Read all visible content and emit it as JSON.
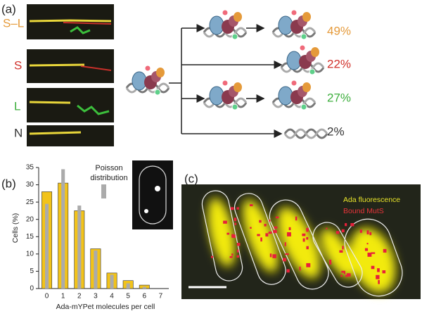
{
  "panel_a": {
    "label": "(a)",
    "rows": [
      "S–L",
      "S",
      "L",
      "N"
    ],
    "percentages": [
      "49%",
      "22%",
      "27%",
      "2%"
    ]
  },
  "chart_data": {
    "type": "bar",
    "panel_label": "(b)",
    "categories": [
      "0",
      "1",
      "2",
      "3",
      "4",
      "5",
      "6",
      "7"
    ],
    "series": [
      {
        "color": "#f2c31a",
        "values": [
          28,
          30.5,
          22.5,
          11.5,
          4.5,
          2.3,
          1,
          0
        ]
      },
      {
        "name": "Poisson distribution",
        "color": "#ababab",
        "values": [
          24.5,
          34.5,
          24,
          11,
          4,
          1.5,
          0.5,
          0
        ]
      }
    ],
    "ylim": [
      0,
      35
    ],
    "yticks": [
      0,
      5,
      10,
      15,
      20,
      25,
      30,
      35
    ],
    "ylabel": "Cells (%)",
    "xlabel": "Ada-mYPet molecules per cell"
  },
  "panel_c": {
    "label": "(c)",
    "legend": [
      "Ada fluorescence",
      "Bound MutS"
    ]
  }
}
